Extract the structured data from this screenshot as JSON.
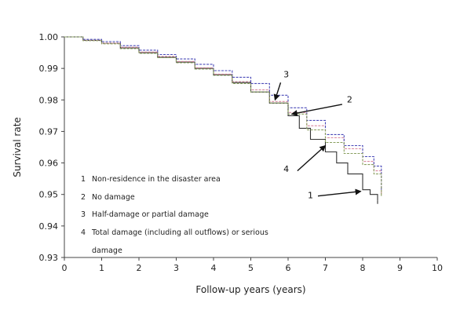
{
  "chart_data": {
    "type": "line",
    "xlabel": "Follow-up years (years)",
    "ylabel": "Survival rate",
    "xlim": [
      0,
      10
    ],
    "ylim": [
      0.93,
      1.0
    ],
    "x_ticks": [
      "0",
      "1",
      "2",
      "3",
      "4",
      "5",
      "6",
      "7",
      "8",
      "9",
      "10"
    ],
    "y_ticks": [
      "0.93",
      "0.94",
      "0.95",
      "0.96",
      "0.97",
      "0.98",
      "0.99",
      "1.00"
    ],
    "grid": false,
    "legend_position": "bottom-left",
    "legend": [
      {
        "num": "1",
        "text": "Non-residence in the disaster area"
      },
      {
        "num": "2",
        "text": "No damage"
      },
      {
        "num": "3",
        "text": "Half-damage or partial damage"
      },
      {
        "num": "4",
        "text": "Total damage (including all outflows) or serious"
      },
      {
        "num": "",
        "text": "damage"
      }
    ],
    "series": [
      {
        "id": "1",
        "color": "#333333",
        "x": [
          0,
          0.5,
          1,
          1.5,
          2,
          2.5,
          3,
          3.5,
          4,
          4.5,
          5,
          5.5,
          6,
          6.3,
          6.6,
          7,
          7.3,
          7.6,
          8,
          8.2,
          8.4
        ],
        "y": [
          1.0,
          0.9989,
          0.998,
          0.9965,
          0.995,
          0.9935,
          0.992,
          0.99,
          0.988,
          0.9855,
          0.9825,
          0.979,
          0.975,
          0.971,
          0.9675,
          0.9635,
          0.96,
          0.9565,
          0.9515,
          0.95,
          0.948
        ]
      },
      {
        "id": "2",
        "color": "#d98aa0",
        "x": [
          0,
          0.5,
          1,
          1.5,
          2,
          2.5,
          3,
          3.5,
          4,
          4.5,
          5,
          5.5,
          6,
          6.5,
          7,
          7.5,
          8,
          8.3,
          8.5
        ],
        "y": [
          1.0,
          0.9989,
          0.998,
          0.9967,
          0.9952,
          0.9938,
          0.9922,
          0.9902,
          0.9882,
          0.9858,
          0.9832,
          0.9795,
          0.976,
          0.9718,
          0.968,
          0.9645,
          0.9605,
          0.9575,
          0.951
        ]
      },
      {
        "id": "3",
        "color": "#4a4ab8",
        "x": [
          0,
          0.5,
          1,
          1.5,
          2,
          2.5,
          3,
          3.5,
          4,
          4.5,
          5,
          5.5,
          6,
          6.5,
          7,
          7.5,
          8,
          8.3,
          8.5
        ],
        "y": [
          1.0,
          0.9992,
          0.9985,
          0.9972,
          0.9958,
          0.9944,
          0.993,
          0.9913,
          0.9893,
          0.9872,
          0.9852,
          0.9815,
          0.9775,
          0.9735,
          0.969,
          0.9655,
          0.962,
          0.959,
          0.9525
        ]
      },
      {
        "id": "4",
        "color": "#8aa060",
        "x": [
          0,
          0.5,
          1,
          1.5,
          2,
          2.5,
          3,
          3.5,
          4,
          4.5,
          5,
          5.5,
          6,
          6.5,
          7,
          7.5,
          8,
          8.3,
          8.5
        ],
        "y": [
          1.0,
          0.9988,
          0.9978,
          0.9963,
          0.9948,
          0.9934,
          0.9918,
          0.9898,
          0.9878,
          0.9852,
          0.9825,
          0.979,
          0.9755,
          0.9705,
          0.9665,
          0.963,
          0.9595,
          0.9565,
          0.9505
        ]
      }
    ],
    "annotations": [
      {
        "label": "3",
        "text_x": 5.95,
        "text_y": 0.9872,
        "tail_x": 5.8,
        "tail_y": 0.9855,
        "head_x": 5.65,
        "head_y": 0.98
      },
      {
        "label": "2",
        "text_x": 7.65,
        "text_y": 0.9792,
        "tail_x": 7.45,
        "tail_y": 0.9786,
        "head_x": 6.1,
        "head_y": 0.9755
      },
      {
        "label": "4",
        "text_x": 5.95,
        "text_y": 0.9572,
        "tail_x": 6.25,
        "tail_y": 0.9575,
        "head_x": 7.0,
        "head_y": 0.9655
      },
      {
        "label": "1",
        "text_x": 6.6,
        "text_y": 0.9488,
        "tail_x": 6.8,
        "tail_y": 0.9495,
        "head_x": 7.95,
        "head_y": 0.951
      }
    ]
  }
}
